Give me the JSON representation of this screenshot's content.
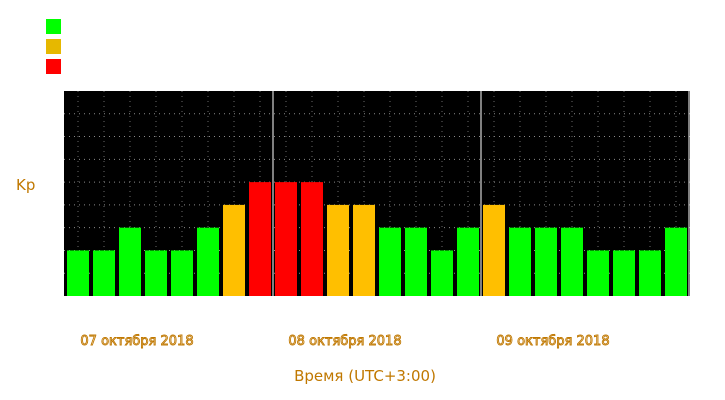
{
  "chart_data": {
    "type": "bar",
    "ylabel": "Kp",
    "xlabel": "Время (UTC+3:00)",
    "ylim": [
      0,
      9
    ],
    "grid": true,
    "background": "#000000",
    "date_labels": [
      "07 октября 2018",
      "08 октября 2018",
      "09 октября 2018"
    ],
    "legend": {
      "placement": "top-left",
      "entries": [
        {
          "color": "#00ff00"
        },
        {
          "color": "#e6b800"
        },
        {
          "color": "#ff0000"
        }
      ]
    },
    "colors": {
      "green": "#00ff00",
      "yellow": "#ffbf00",
      "red": "#ff0000",
      "label": "#c07800"
    },
    "values": [
      2,
      2,
      3,
      2,
      2,
      3,
      4,
      5,
      5,
      5,
      4,
      4,
      3,
      3,
      2,
      3,
      4,
      3,
      3,
      3,
      2,
      2,
      2,
      3
    ],
    "bar_colors": [
      "green",
      "green",
      "green",
      "green",
      "green",
      "green",
      "yellow",
      "red",
      "red",
      "red",
      "yellow",
      "yellow",
      "green",
      "green",
      "green",
      "green",
      "yellow",
      "green",
      "green",
      "green",
      "green",
      "green",
      "green",
      "green"
    ]
  }
}
